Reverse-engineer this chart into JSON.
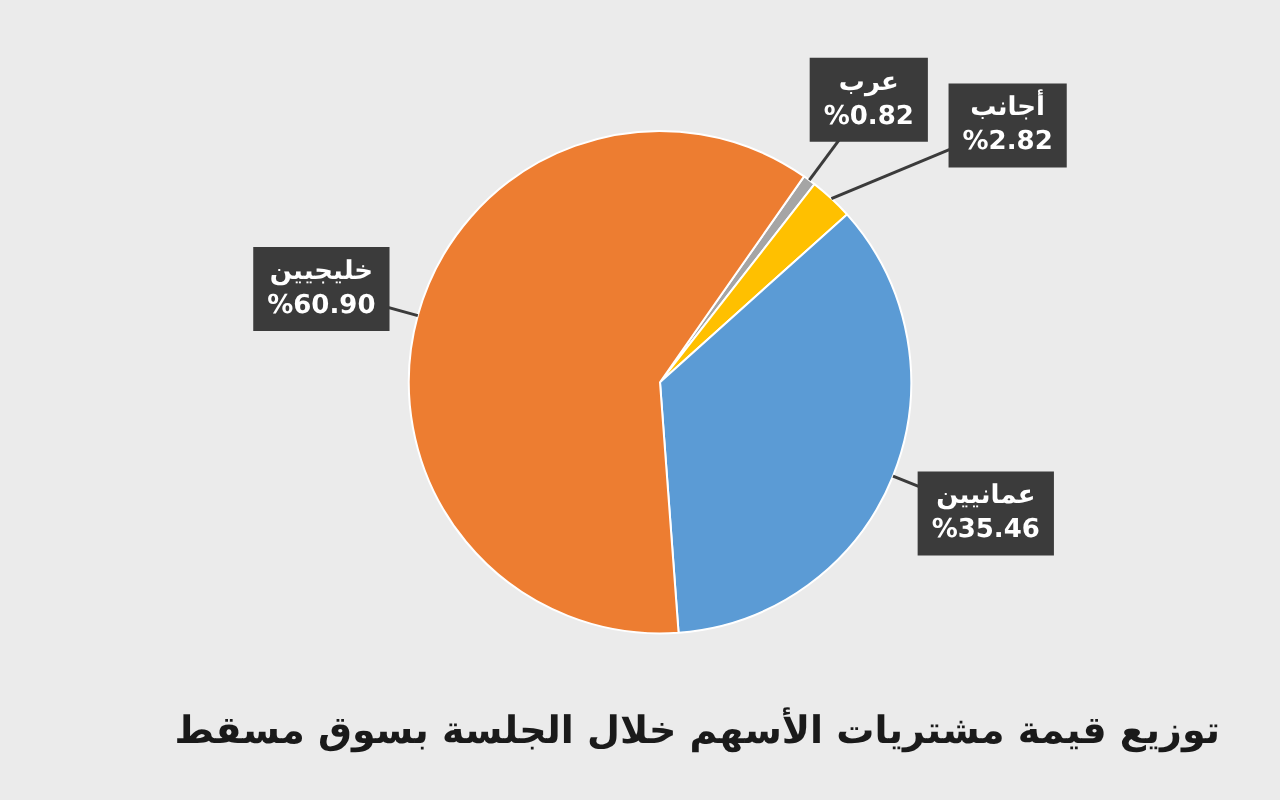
{
  "chart_data": {
    "type": "pie",
    "title": "توزيع قيمة مشتريات الأسهم خلال الجلسة بسوق مسقط",
    "categories": [
      "عرب",
      "أجانب",
      "عمانيين",
      "خليجيين"
    ],
    "values": [
      0.82,
      2.82,
      35.46,
      60.9
    ],
    "colors": [
      "#a5a5a5",
      "#ffc000",
      "#5b9bd5",
      "#ed7d31"
    ],
    "value_labels": [
      "%0.82",
      "%2.82",
      "%35.46",
      "%60.90"
    ],
    "legend": false
  }
}
